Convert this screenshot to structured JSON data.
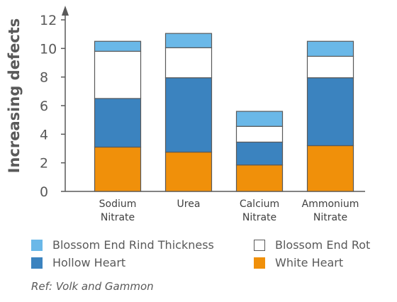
{
  "chart_data": {
    "type": "bar",
    "stacked": true,
    "ylabel": "Increasing defects",
    "ylim": [
      0,
      12
    ],
    "yticks": [
      0,
      2,
      4,
      6,
      8,
      10,
      12
    ],
    "categories": [
      [
        "Sodium",
        "Nitrate"
      ],
      [
        "Urea"
      ],
      [
        "Calcium",
        "Nitrate"
      ],
      [
        "Ammonium",
        "Nitrate"
      ]
    ],
    "series": [
      {
        "name": "White Heart",
        "color": "#f0900a",
        "values": [
          3.1,
          2.75,
          1.85,
          3.2
        ]
      },
      {
        "name": "Hollow Heart",
        "color": "#3b83bf",
        "values": [
          3.4,
          5.2,
          1.6,
          4.75
        ]
      },
      {
        "name": "Blossom End Rot",
        "color": "#ffffff",
        "values": [
          3.3,
          2.1,
          1.1,
          1.5
        ]
      },
      {
        "name": "Blossom End Rind Thickness",
        "color": "#6ab8e8",
        "values": [
          0.7,
          1.0,
          1.05,
          1.05
        ]
      }
    ],
    "legend_order": [
      "Blossom End Rind Thickness",
      "Blossom End Rot",
      "Hollow Heart",
      "White Heart"
    ],
    "grid": false,
    "legend": "bottom"
  },
  "reference": "Ref: Volk and Gammon"
}
